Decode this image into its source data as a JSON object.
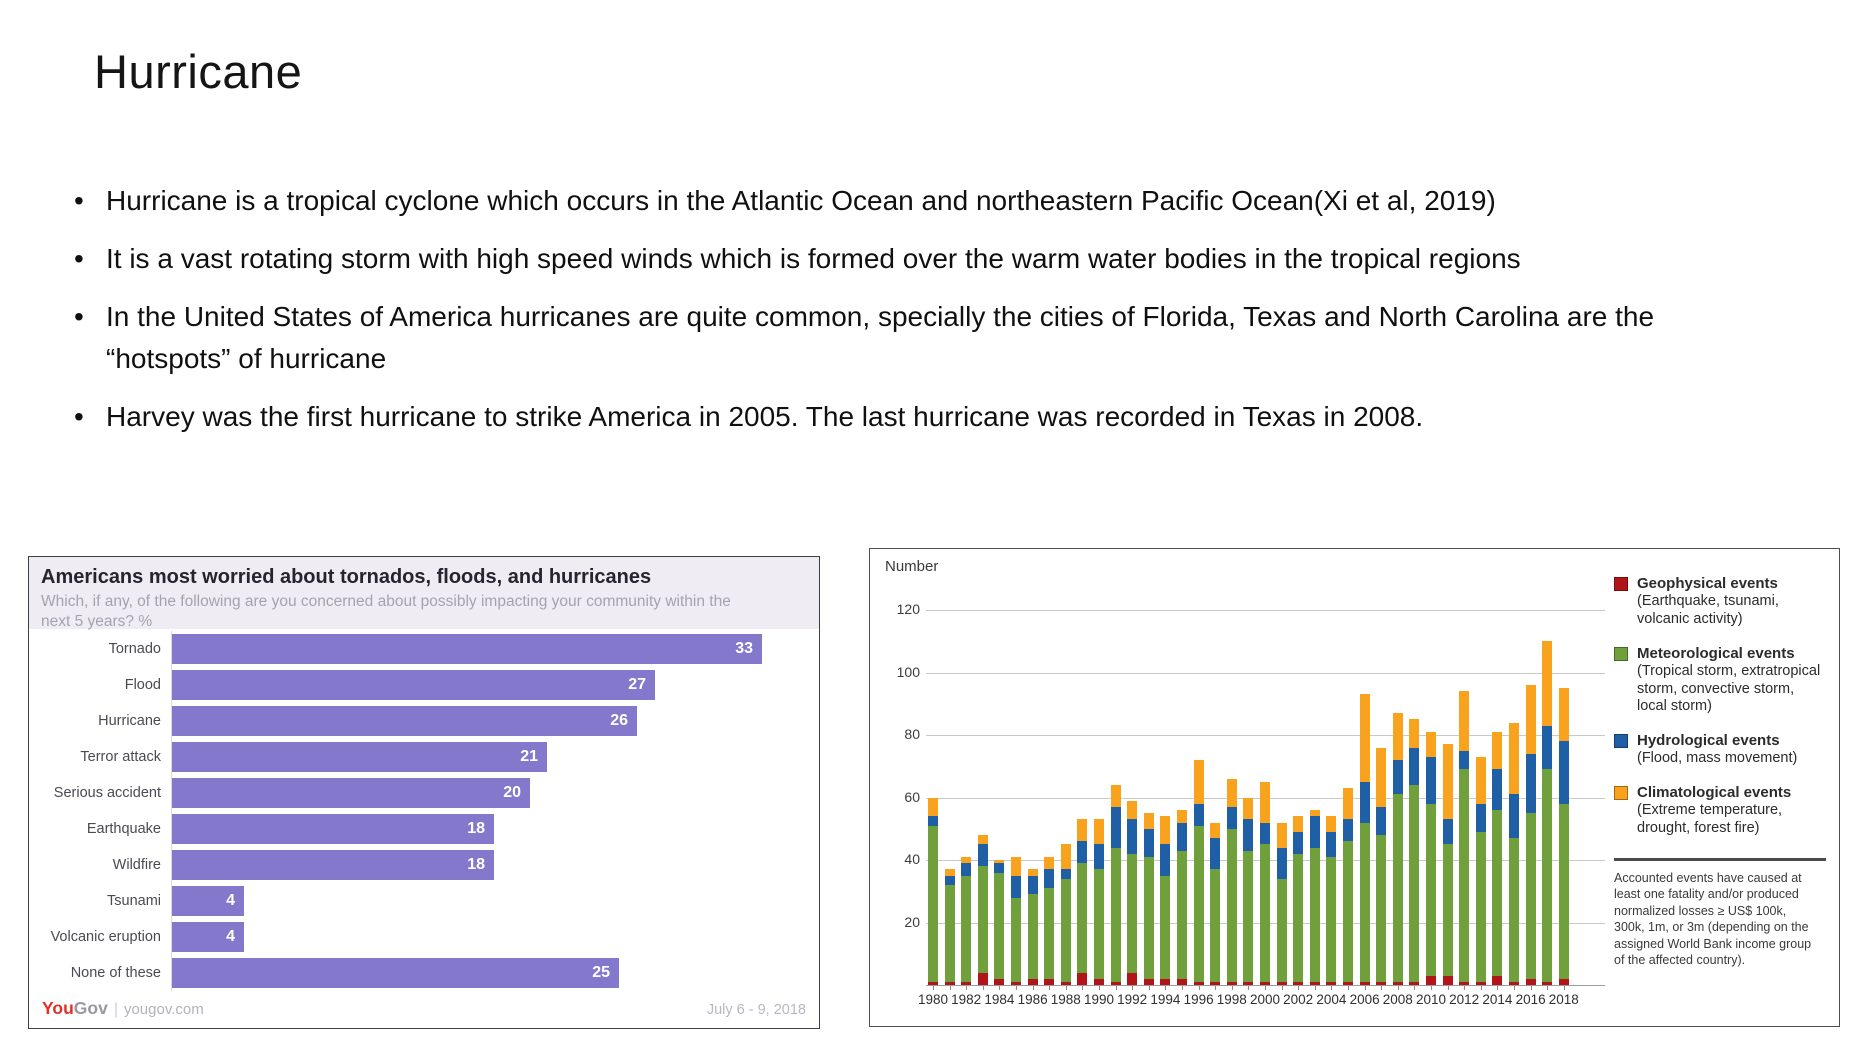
{
  "slide": {
    "title": "Hurricane",
    "bullets": [
      "Hurricane is a tropical cyclone which occurs in the Atlantic Ocean and northeastern Pacific Ocean(Xi et al, 2019)",
      "It is a vast rotating storm with high speed winds which is formed over the warm water bodies in the tropical regions",
      "In the United States of America hurricanes are quite common, specially the cities of Florida, Texas and North Carolina are the “hotspots” of hurricane",
      "Harvey was the first  hurricane to strike America in 2005. The last hurricane was recorded in Texas in 2008."
    ]
  },
  "chart_data": [
    {
      "type": "bar",
      "orientation": "horizontal",
      "title": "Americans most worried about tornados, floods, and hurricanes",
      "subtitle": "Which, if any, of the following are you concerned about possibly impacting your community within the next 5 years? %",
      "categories": [
        "Tornado",
        "Flood",
        "Hurricane",
        "Terror attack",
        "Serious accident",
        "Earthquake",
        "Wildfire",
        "Tsunami",
        "Volcanic eruption",
        "None of these"
      ],
      "values": [
        33,
        27,
        26,
        21,
        20,
        18,
        18,
        4,
        4,
        25
      ],
      "xlim": [
        0,
        35
      ],
      "grid": false,
      "legend_position": "none",
      "bar_color": "#8478cd",
      "value_label_color": "#ffffff",
      "source_brand": {
        "part1": "You",
        "part2": "Gov",
        "separator": "|",
        "site": "yougov.com"
      },
      "date_note": "July 6 - 9, 2018"
    },
    {
      "type": "bar",
      "stacked": true,
      "ylabel": "Number",
      "ylim": [
        0,
        120
      ],
      "yticks": [
        20,
        40,
        60,
        80,
        100,
        120
      ],
      "grid": true,
      "legend_position": "right",
      "x": [
        1980,
        1981,
        1982,
        1983,
        1984,
        1985,
        1986,
        1987,
        1988,
        1989,
        1990,
        1991,
        1992,
        1993,
        1994,
        1995,
        1996,
        1997,
        1998,
        1999,
        2000,
        2001,
        2002,
        2003,
        2004,
        2005,
        2006,
        2007,
        2008,
        2009,
        2010,
        2011,
        2012,
        2013,
        2014,
        2015,
        2016,
        2017,
        2018
      ],
      "x_label_every": 2,
      "series": [
        {
          "name": "Geophysical events",
          "detail": "(Earthquake, tsunami, volcanic activity)",
          "color": "#b11419",
          "values": [
            1,
            1,
            1,
            4,
            2,
            1,
            2,
            2,
            1,
            4,
            2,
            1,
            4,
            2,
            2,
            2,
            1,
            1,
            1,
            1,
            1,
            1,
            1,
            1,
            1,
            1,
            1,
            1,
            1,
            1,
            3,
            3,
            1,
            1,
            3,
            1,
            2,
            1,
            2
          ]
        },
        {
          "name": "Meteorological events",
          "detail": "(Tropical storm, extratropical storm, convective storm, local storm)",
          "color": "#6fa03c",
          "values": [
            50,
            31,
            34,
            34,
            34,
            27,
            27,
            29,
            33,
            35,
            35,
            43,
            38,
            39,
            33,
            41,
            50,
            36,
            49,
            42,
            44,
            33,
            41,
            43,
            40,
            45,
            51,
            47,
            60,
            63,
            55,
            42,
            68,
            48,
            53,
            46,
            53,
            68,
            56
          ]
        },
        {
          "name": "Hydrological events",
          "detail": "(Flood, mass movement)",
          "color": "#1e5fa5",
          "values": [
            3,
            3,
            4,
            7,
            3,
            7,
            6,
            6,
            3,
            7,
            8,
            13,
            11,
            9,
            10,
            9,
            7,
            10,
            7,
            10,
            7,
            10,
            7,
            10,
            8,
            7,
            13,
            9,
            11,
            12,
            15,
            8,
            6,
            9,
            13,
            14,
            19,
            14,
            20
          ]
        },
        {
          "name": "Climatological events",
          "detail": "(Extreme temperature, drought, forest fire)",
          "color": "#f9a21d",
          "values": [
            6,
            2,
            2,
            3,
            1,
            6,
            2,
            4,
            8,
            7,
            8,
            7,
            6,
            5,
            9,
            4,
            14,
            5,
            9,
            7,
            13,
            8,
            5,
            2,
            5,
            10,
            28,
            19,
            15,
            9,
            8,
            24,
            19,
            15,
            12,
            23,
            22,
            27,
            17
          ]
        }
      ],
      "footnote": "Accounted events have caused at least one fatality and/or produced normalized losses ≥ US$ 100k, 300k, 1m, or 3m (depending on the assigned World Bank income group of the affected country)."
    }
  ]
}
